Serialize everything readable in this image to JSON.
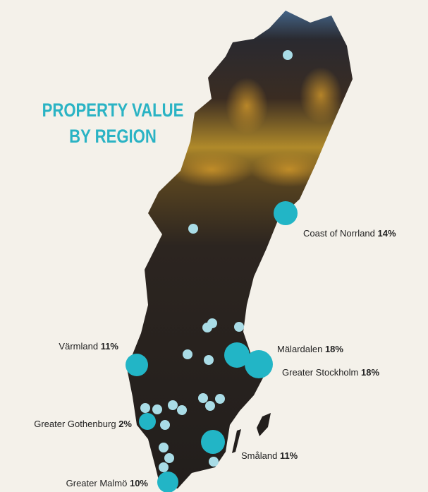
{
  "title": [
    "PROPERTY VALUE",
    "BY REGION"
  ],
  "regions": [
    {
      "name": "Coast of Norrland",
      "share": "14%"
    },
    {
      "name": "Mälardalen",
      "share": "18%"
    },
    {
      "name": "Greater Stockholm",
      "share": "18%"
    },
    {
      "name": "Värmland",
      "share": "11%"
    },
    {
      "name": "Greater Gothenburg",
      "share": "2%"
    },
    {
      "name": "Småland",
      "share": "11%"
    },
    {
      "name": "Greater Malmö",
      "share": "10%"
    }
  ]
}
